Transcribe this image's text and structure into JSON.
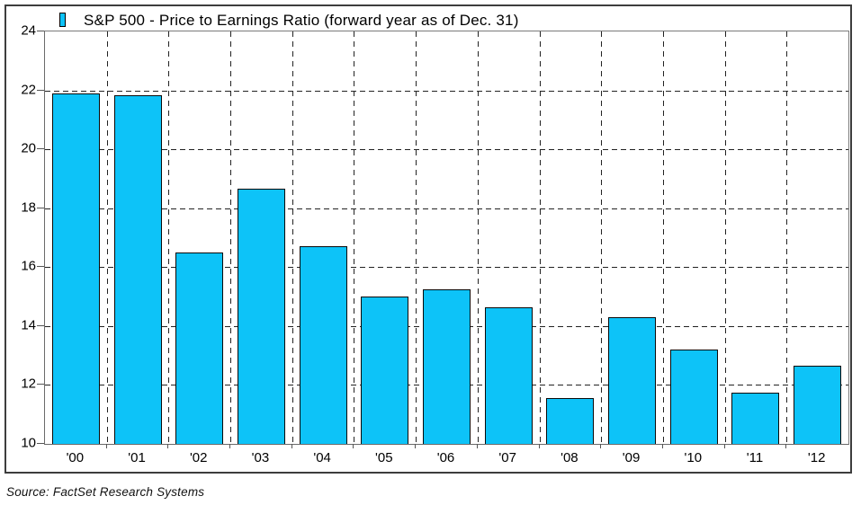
{
  "chart_data": {
    "type": "bar",
    "title": "S&P 500 - Price to Earnings Ratio (forward year as of Dec. 31)",
    "source_note": "Source: FactSet Research Systems",
    "categories": [
      "'00",
      "'01",
      "'02",
      "'03",
      "'04",
      "'05",
      "'06",
      "'07",
      "'08",
      "'09",
      "'10",
      "'11",
      "'12"
    ],
    "values": [
      21.9,
      21.85,
      16.5,
      18.65,
      16.7,
      15.0,
      15.25,
      14.65,
      11.55,
      14.3,
      13.2,
      11.75,
      12.65
    ],
    "xlabel": "",
    "ylabel": "",
    "ylim": [
      10,
      24
    ],
    "yticks": [
      10,
      12,
      14,
      16,
      18,
      20,
      22,
      24
    ],
    "grid": "dashed-both-axes",
    "legend_position": "top-left-inside",
    "legend_entries": [
      "S&P 500 - Price to Earnings Ratio (forward year as of Dec. 31)"
    ],
    "colors": {
      "bar_fill": "#0DC3F8",
      "bar_border": "#0a0a0a",
      "grid": "#222222",
      "plot_border": "#7a7a7a",
      "figure_border": "#3d3d3d"
    }
  }
}
